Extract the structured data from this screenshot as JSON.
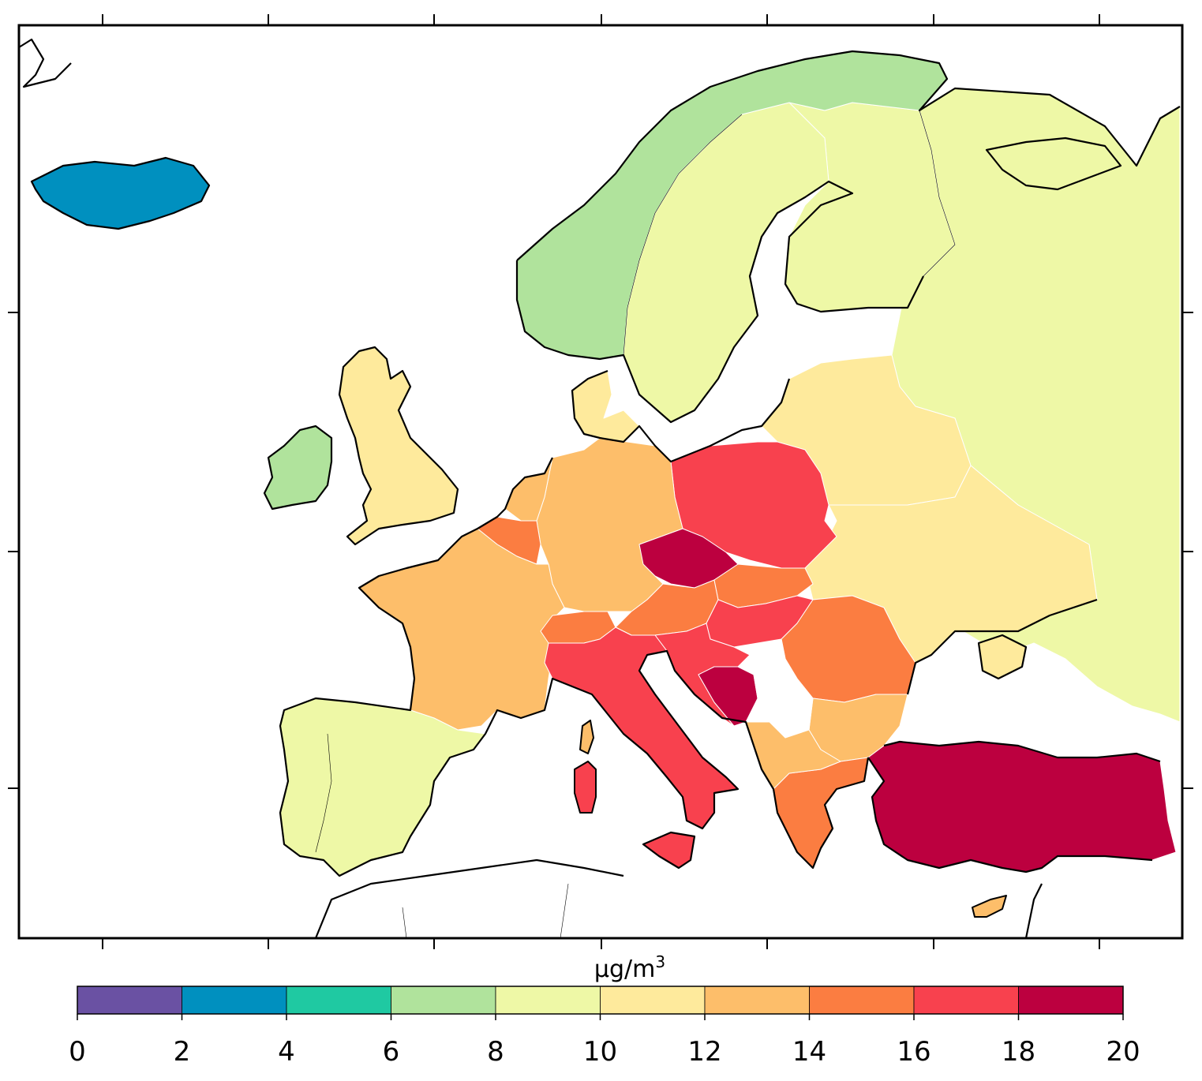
{
  "colorbar": {
    "unit": "µg/m",
    "unit_superscript": "3",
    "ticks": [
      "0",
      "2",
      "4",
      "6",
      "8",
      "10",
      "12",
      "14",
      "16",
      "18",
      "20"
    ],
    "bins": [
      {
        "range": [
          0,
          2
        ],
        "color": "#6a51a3"
      },
      {
        "range": [
          2,
          4
        ],
        "color": "#0090bf"
      },
      {
        "range": [
          4,
          6
        ],
        "color": "#1fc9a2"
      },
      {
        "range": [
          6,
          8
        ],
        "color": "#b0e39c"
      },
      {
        "range": [
          8,
          10
        ],
        "color": "#eef8a6"
      },
      {
        "range": [
          10,
          12
        ],
        "color": "#feea9c"
      },
      {
        "range": [
          12,
          14
        ],
        "color": "#fdbe6a"
      },
      {
        "range": [
          14,
          16
        ],
        "color": "#fb7d41"
      },
      {
        "range": [
          16,
          18
        ],
        "color": "#f8414e"
      },
      {
        "range": [
          18,
          20
        ],
        "color": "#bc003f"
      }
    ]
  },
  "regions": [
    {
      "name": "iceland",
      "bin": 1
    },
    {
      "name": "norway",
      "bin": 3
    },
    {
      "name": "sweden",
      "bin": 4
    },
    {
      "name": "finland",
      "bin": 4
    },
    {
      "name": "russia",
      "bin": 4
    },
    {
      "name": "ireland",
      "bin": 3
    },
    {
      "name": "united-kingdom",
      "bin": 5
    },
    {
      "name": "denmark",
      "bin": 5
    },
    {
      "name": "baltics-belarus",
      "bin": 5
    },
    {
      "name": "ukraine",
      "bin": 5
    },
    {
      "name": "germany",
      "bin": 6
    },
    {
      "name": "netherlands",
      "bin": 6
    },
    {
      "name": "france",
      "bin": 6
    },
    {
      "name": "belgium",
      "bin": 7
    },
    {
      "name": "switzerland",
      "bin": 7
    },
    {
      "name": "austria",
      "bin": 7
    },
    {
      "name": "slovakia",
      "bin": 7
    },
    {
      "name": "romania",
      "bin": 7
    },
    {
      "name": "bulgaria",
      "bin": 6
    },
    {
      "name": "greece",
      "bin": 7
    },
    {
      "name": "poland",
      "bin": 8
    },
    {
      "name": "italy",
      "bin": 8
    },
    {
      "name": "hungary",
      "bin": 8
    },
    {
      "name": "croatia",
      "bin": 8
    },
    {
      "name": "czech-republic",
      "bin": 9
    },
    {
      "name": "bosnia",
      "bin": 9
    },
    {
      "name": "turkey",
      "bin": 9
    },
    {
      "name": "iberia",
      "bin": 4
    },
    {
      "name": "corsica",
      "bin": 6
    },
    {
      "name": "sardinia",
      "bin": 8
    },
    {
      "name": "cyprus",
      "bin": 6
    },
    {
      "name": "crimea",
      "bin": 5
    }
  ]
}
